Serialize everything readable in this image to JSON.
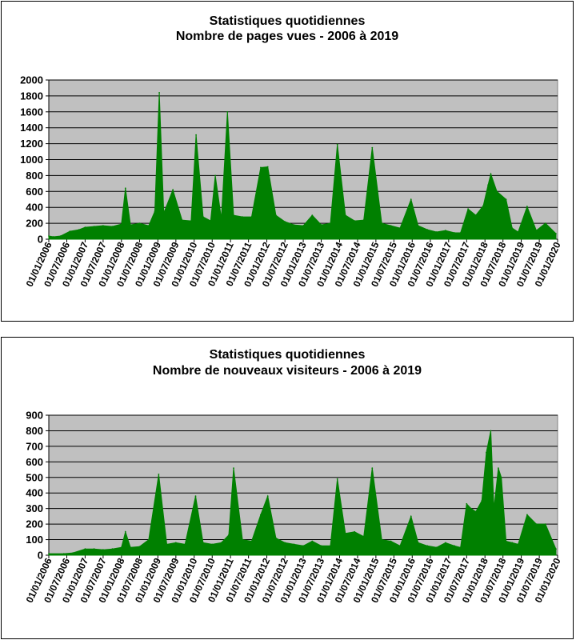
{
  "chart_data": [
    {
      "type": "area",
      "title": "Statistiques quotidiennes",
      "subtitle": "Nombre de pages vues - 2006 à 2019",
      "ylim": [
        0,
        2000
      ],
      "yticks": [
        "0",
        "200",
        "400",
        "600",
        "800",
        "1000",
        "1200",
        "1400",
        "1600",
        "1800",
        "2000"
      ],
      "xlim": [
        "2006-01-01",
        "2020-01-01"
      ],
      "xticks": [
        "01/01/2006",
        "01/07/2006",
        "01/01/2007",
        "01/07/2007",
        "01/01/2008",
        "01/07/2008",
        "01/01/2009",
        "01/07/2009",
        "01/01/2010",
        "01/07/2010",
        "01/01/2011",
        "01/07/2011",
        "01/01/2012",
        "01/07/2012",
        "01/01/2013",
        "01/07/2013",
        "01/01/2014",
        "01/07/2014",
        "01/01/2015",
        "01/07/2015",
        "01/01/2016",
        "01/07/2016",
        "01/01/2017",
        "01/07/2017",
        "01/01/2018",
        "01/07/2018",
        "01/01/2019",
        "01/07/2019",
        "01/01/2020"
      ],
      "grid": true,
      "plot_background": "#c0c0c0",
      "series_color": "#008000",
      "x": [
        "2006-01-01",
        "2006-02-15",
        "2006-05-01",
        "2006-08-01",
        "2006-11-01",
        "2007-01-01",
        "2007-04-01",
        "2007-07-01",
        "2007-10-01",
        "2008-01-01",
        "2008-02-10",
        "2008-04-01",
        "2008-07-01",
        "2008-10-01",
        "2008-12-01",
        "2009-01-15",
        "2009-03-01",
        "2009-06-01",
        "2009-09-01",
        "2009-12-01",
        "2010-01-20",
        "2010-04-01",
        "2010-06-15",
        "2010-08-01",
        "2010-10-01",
        "2010-12-01",
        "2011-02-01",
        "2011-05-01",
        "2011-08-01",
        "2011-11-01",
        "2012-01-10",
        "2012-04-01",
        "2012-07-01",
        "2012-10-01",
        "2013-01-01",
        "2013-04-01",
        "2013-07-01",
        "2013-10-01",
        "2013-12-10",
        "2014-03-01",
        "2014-06-01",
        "2014-09-01",
        "2014-11-25",
        "2015-03-01",
        "2015-06-01",
        "2015-09-01",
        "2015-12-20",
        "2016-03-01",
        "2016-06-01",
        "2016-09-01",
        "2016-12-01",
        "2017-03-01",
        "2017-05-01",
        "2017-07-15",
        "2017-10-01",
        "2017-12-15",
        "2018-02-01",
        "2018-03-01",
        "2018-05-01",
        "2018-08-01",
        "2018-10-01",
        "2018-12-01",
        "2019-03-01",
        "2019-06-01",
        "2019-09-01",
        "2019-12-15"
      ],
      "y": [
        40,
        30,
        40,
        100,
        120,
        150,
        160,
        170,
        160,
        190,
        640,
        180,
        200,
        170,
        350,
        1840,
        330,
        620,
        240,
        230,
        1310,
        280,
        230,
        800,
        260,
        1600,
        300,
        280,
        280,
        900,
        910,
        300,
        220,
        180,
        170,
        300,
        180,
        200,
        1190,
        300,
        230,
        240,
        1150,
        200,
        170,
        140,
        500,
        170,
        120,
        90,
        110,
        80,
        80,
        380,
        300,
        420,
        680,
        820,
        600,
        500,
        140,
        90,
        410,
        110,
        200,
        70
      ]
    },
    {
      "type": "area",
      "title": "Statistiques quotidiennes",
      "subtitle": "Nombre de nouveaux visiteurs -  2006 à 2019",
      "ylim": [
        0,
        900
      ],
      "yticks": [
        "0",
        "100",
        "200",
        "300",
        "400",
        "500",
        "600",
        "700",
        "800",
        "900"
      ],
      "xlim": [
        "2006-01-01",
        "2020-01-01"
      ],
      "xticks": [
        "01/01/2006",
        "01/07/2006",
        "01/01/2007",
        "01/07/2007",
        "01/01/2008",
        "01/07/2008",
        "01/01/2009",
        "01/07/2009",
        "01/01/2010",
        "01/07/2010",
        "01/01/2011",
        "01/07/2011",
        "01/01/2012",
        "01/07/2012",
        "01/01/2013",
        "01/07/2013",
        "01/01/2014",
        "01/07/2014",
        "01/01/2015",
        "01/07/2015",
        "01/01/2016",
        "01/07/2016",
        "01/01/2017",
        "01/07/2017",
        "01/01/2018",
        "01/07/2018",
        "01/01/2019",
        "01/07/2019",
        "01/01/2020"
      ],
      "grid": true,
      "plot_background": "#c0c0c0",
      "series_color": "#008000",
      "x": [
        "2006-01-01",
        "2006-06-01",
        "2006-09-01",
        "2007-01-01",
        "2007-04-01",
        "2007-07-01",
        "2007-10-01",
        "2008-01-01",
        "2008-02-10",
        "2008-04-01",
        "2008-07-01",
        "2008-10-01",
        "2009-01-10",
        "2009-04-01",
        "2009-07-01",
        "2009-10-01",
        "2010-01-15",
        "2010-04-01",
        "2010-07-01",
        "2010-10-01",
        "2010-12-15",
        "2011-02-01",
        "2011-05-01",
        "2011-08-01",
        "2011-11-01",
        "2012-01-10",
        "2012-04-01",
        "2012-07-01",
        "2012-10-01",
        "2013-01-01",
        "2013-04-01",
        "2013-07-01",
        "2013-10-01",
        "2013-12-10",
        "2014-03-01",
        "2014-06-01",
        "2014-09-01",
        "2014-11-25",
        "2015-03-01",
        "2015-06-01",
        "2015-09-01",
        "2015-12-20",
        "2016-03-01",
        "2016-06-01",
        "2016-09-01",
        "2016-12-01",
        "2017-03-01",
        "2017-05-01",
        "2017-07-01",
        "2017-08-15",
        "2017-10-01",
        "2017-12-01",
        "2018-01-15",
        "2018-03-01",
        "2018-04-01",
        "2018-05-15",
        "2018-06-15",
        "2018-08-01",
        "2018-10-01",
        "2018-12-01",
        "2019-03-01",
        "2019-06-01",
        "2019-09-01",
        "2019-12-15"
      ],
      "y": [
        10,
        10,
        15,
        40,
        40,
        35,
        40,
        50,
        150,
        50,
        55,
        100,
        520,
        70,
        80,
        70,
        380,
        80,
        70,
        80,
        130,
        560,
        100,
        90,
        260,
        380,
        110,
        80,
        70,
        60,
        90,
        60,
        60,
        490,
        140,
        150,
        120,
        560,
        100,
        90,
        60,
        250,
        80,
        60,
        50,
        80,
        60,
        50,
        330,
        300,
        280,
        350,
        660,
        800,
        300,
        560,
        500,
        90,
        80,
        70,
        260,
        200,
        200,
        40
      ]
    }
  ]
}
